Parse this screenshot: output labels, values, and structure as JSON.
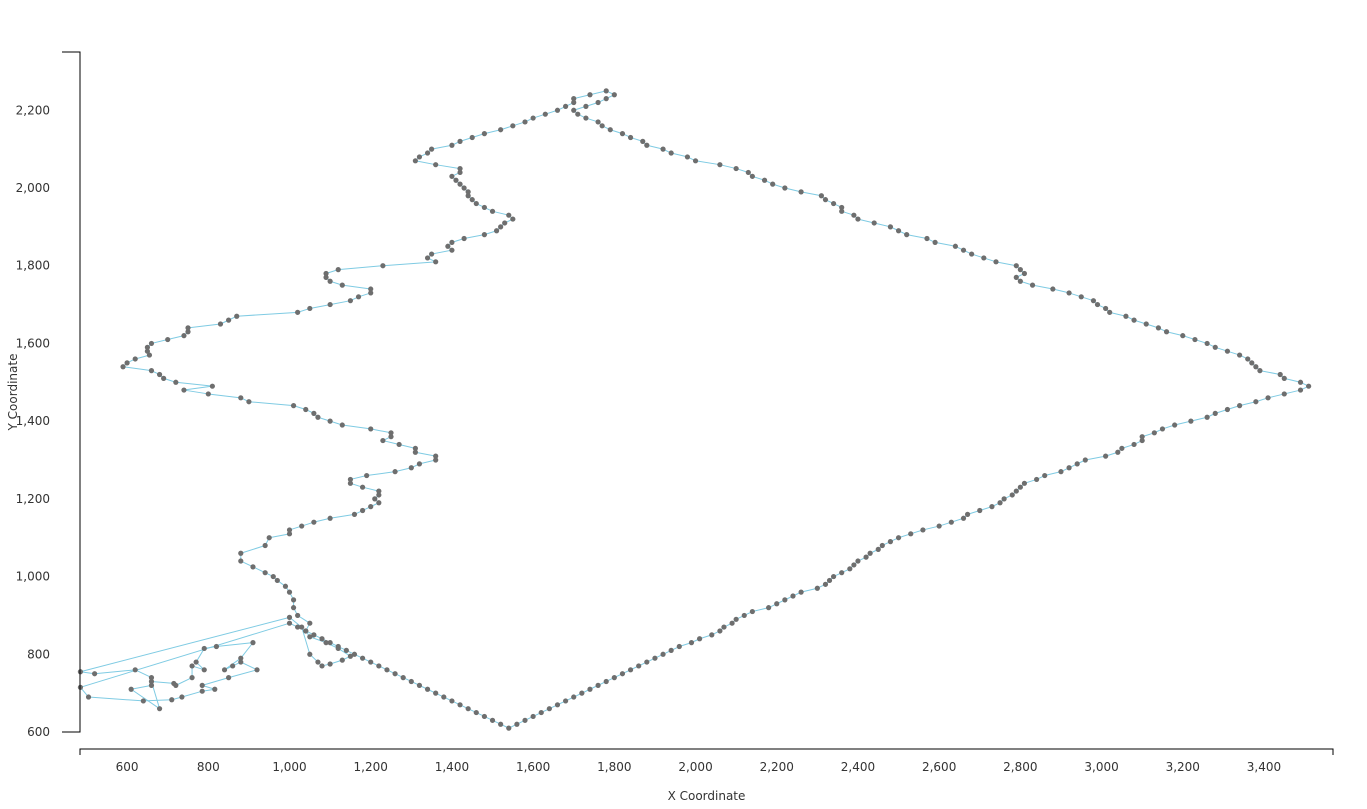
{
  "chart_data": {
    "type": "line",
    "title": "",
    "xlabel": "X Coordinate",
    "ylabel": "Y Coordinate",
    "xlim": [
      484,
      3570
    ],
    "ylim": [
      600,
      2350
    ],
    "xticks": [
      600,
      800,
      1000,
      1200,
      1400,
      1600,
      1800,
      2000,
      2200,
      2400,
      2600,
      2800,
      3000,
      3200,
      3400
    ],
    "xtick_labels": [
      "600",
      "800",
      "1,000",
      "1,200",
      "1,400",
      "1,600",
      "1,800",
      "2,000",
      "2,200",
      "2,400",
      "2,600",
      "2,800",
      "3,000",
      "3,200",
      "3,400"
    ],
    "yticks": [
      600,
      800,
      1000,
      1200,
      1400,
      1600,
      1800,
      2000,
      2200
    ],
    "ytick_labels": [
      "600",
      "800",
      "1,000",
      "1,200",
      "1,400",
      "1,600",
      "1,800",
      "2,000",
      "2,200"
    ],
    "grid": false,
    "colors": {
      "line": "#7fcbe3",
      "marker": "#6e6e6e",
      "axis": "#000000",
      "text": "#333333"
    },
    "series": [
      {
        "closed": true,
        "x": [
          485,
          505,
          640,
          710,
          735,
          785,
          816,
          785,
          850,
          920,
          880,
          860,
          840,
          880,
          910,
          820,
          790,
          770,
          790,
          760,
          760,
          720,
          715,
          660,
          680,
          610,
          660,
          660,
          620,
          520,
          485,
          1000,
          1030,
          1050,
          1070,
          1080,
          1100,
          1130,
          1150,
          1120,
          1090,
          1050,
          1040,
          1050,
          1020,
          1010,
          1010,
          1000,
          990,
          970,
          960,
          940,
          910,
          880,
          880,
          940,
          950,
          1000,
          1000,
          1030,
          1060,
          1100,
          1160,
          1180,
          1200,
          1220,
          1210,
          1220,
          1220,
          1180,
          1150,
          1150,
          1190,
          1260,
          1300,
          1320,
          1360,
          1360,
          1310,
          1310,
          1270,
          1230,
          1250,
          1250,
          1200,
          1130,
          1100,
          1070,
          1060,
          1040,
          1010,
          900,
          880,
          800,
          740,
          810,
          720,
          690,
          680,
          660,
          590,
          600,
          620,
          655,
          650,
          650,
          660,
          700,
          740,
          750,
          750,
          830,
          850,
          870,
          1020,
          1050,
          1100,
          1150,
          1170,
          1200,
          1200,
          1130,
          1100,
          1090,
          1090,
          1120,
          1230,
          1360,
          1340,
          1350,
          1400,
          1390,
          1400,
          1430,
          1480,
          1510,
          1520,
          1530,
          1550,
          1540,
          1500,
          1480,
          1460,
          1450,
          1440,
          1440,
          1430,
          1420,
          1410,
          1400,
          1420,
          1420,
          1360,
          1310,
          1320,
          1340,
          1350,
          1400,
          1420,
          1450,
          1480,
          1520,
          1550,
          1580,
          1600,
          1630,
          1660,
          1680,
          1700,
          1700,
          1740,
          1780,
          1800,
          1780,
          1760,
          1730,
          1700,
          1710,
          1730,
          1760,
          1770,
          1790,
          1820,
          1840,
          1870,
          1880,
          1920,
          1940,
          1980,
          2000,
          2060,
          2100,
          2130,
          2140,
          2170,
          2190,
          2220,
          2260,
          2310,
          2320,
          2340,
          2360,
          2360,
          2390,
          2400,
          2440,
          2480,
          2500,
          2520,
          2570,
          2590,
          2640,
          2660,
          2680,
          2710,
          2740,
          2790,
          2800,
          2810,
          2790,
          2800,
          2830,
          2880,
          2920,
          2950,
          2980,
          2990,
          3010,
          3020,
          3060,
          3080,
          3110,
          3140,
          3160,
          3200,
          3230,
          3260,
          3280,
          3310,
          3340,
          3360,
          3370,
          3380,
          3390,
          3440,
          3450,
          3490,
          3510,
          3490,
          3450,
          3410,
          3380,
          3340,
          3310,
          3280,
          3260,
          3220,
          3180,
          3150,
          3130,
          3100,
          3100,
          3080,
          3050,
          3040,
          3010,
          2960,
          2940,
          2920,
          2900,
          2860,
          2840,
          2810,
          2800,
          2790,
          2780,
          2760,
          2750,
          2730,
          2700,
          2670,
          2660,
          2630,
          2600,
          2560,
          2530,
          2500,
          2480,
          2460,
          2450,
          2430,
          2420,
          2400,
          2390,
          2380,
          2360,
          2340,
          2330,
          2320,
          2300,
          2260,
          2240,
          2220,
          2200,
          2180,
          2140,
          2120,
          2100,
          2090,
          2070,
          2060,
          2040,
          2010,
          1990,
          1960,
          1940,
          1920,
          1900,
          1880,
          1860,
          1840,
          1820,
          1800,
          1780,
          1760,
          1740,
          1720,
          1700,
          1680,
          1660,
          1640,
          1620,
          1600,
          1580,
          1560,
          1540,
          1520,
          1500,
          1480,
          1460,
          1440,
          1420,
          1400,
          1380,
          1360,
          1340,
          1320,
          1300,
          1280,
          1260,
          1240,
          1220,
          1200,
          1180,
          1160,
          1140,
          1120,
          1100,
          1080,
          1060,
          1040,
          1020,
          1000
        ],
        "y": [
          715,
          690,
          680,
          683,
          690,
          705,
          710,
          720,
          740,
          760,
          780,
          770,
          760,
          790,
          830,
          820,
          815,
          780,
          760,
          770,
          740,
          720,
          725,
          730,
          660,
          710,
          720,
          740,
          760,
          750,
          755,
          895,
          870,
          800,
          780,
          770,
          775,
          785,
          795,
          815,
          830,
          845,
          860,
          880,
          900,
          920,
          940,
          960,
          975,
          990,
          1000,
          1010,
          1025,
          1040,
          1060,
          1080,
          1100,
          1110,
          1120,
          1130,
          1140,
          1150,
          1160,
          1170,
          1180,
          1190,
          1200,
          1210,
          1220,
          1230,
          1240,
          1250,
          1260,
          1270,
          1280,
          1290,
          1300,
          1310,
          1320,
          1330,
          1340,
          1350,
          1360,
          1370,
          1380,
          1390,
          1400,
          1410,
          1420,
          1430,
          1440,
          1450,
          1460,
          1470,
          1480,
          1490,
          1500,
          1510,
          1520,
          1530,
          1540,
          1550,
          1560,
          1570,
          1580,
          1590,
          1600,
          1610,
          1620,
          1630,
          1640,
          1650,
          1660,
          1670,
          1680,
          1690,
          1700,
          1710,
          1720,
          1730,
          1740,
          1750,
          1760,
          1770,
          1780,
          1790,
          1800,
          1810,
          1820,
          1830,
          1840,
          1850,
          1860,
          1870,
          1880,
          1890,
          1900,
          1910,
          1920,
          1930,
          1940,
          1950,
          1960,
          1970,
          1980,
          1990,
          2000,
          2010,
          2020,
          2030,
          2040,
          2050,
          2060,
          2070,
          2080,
          2090,
          2100,
          2110,
          2120,
          2130,
          2140,
          2150,
          2160,
          2170,
          2180,
          2190,
          2200,
          2210,
          2220,
          2230,
          2240,
          2250,
          2240,
          2230,
          2220,
          2210,
          2200,
          2190,
          2180,
          2170,
          2160,
          2150,
          2140,
          2130,
          2120,
          2110,
          2100,
          2090,
          2080,
          2070,
          2060,
          2050,
          2040,
          2030,
          2020,
          2010,
          2000,
          1990,
          1980,
          1970,
          1960,
          1950,
          1940,
          1930,
          1920,
          1910,
          1900,
          1890,
          1880,
          1870,
          1860,
          1850,
          1840,
          1830,
          1820,
          1810,
          1800,
          1790,
          1780,
          1770,
          1760,
          1750,
          1740,
          1730,
          1720,
          1710,
          1700,
          1690,
          1680,
          1670,
          1660,
          1650,
          1640,
          1630,
          1620,
          1610,
          1600,
          1590,
          1580,
          1570,
          1560,
          1550,
          1540,
          1530,
          1520,
          1510,
          1500,
          1490,
          1480,
          1470,
          1460,
          1450,
          1440,
          1430,
          1420,
          1410,
          1400,
          1390,
          1380,
          1370,
          1360,
          1350,
          1340,
          1330,
          1320,
          1310,
          1300,
          1290,
          1280,
          1270,
          1260,
          1250,
          1240,
          1230,
          1220,
          1210,
          1200,
          1190,
          1180,
          1170,
          1160,
          1150,
          1140,
          1130,
          1120,
          1110,
          1100,
          1090,
          1080,
          1070,
          1060,
          1050,
          1040,
          1030,
          1020,
          1010,
          1000,
          990,
          980,
          970,
          960,
          950,
          940,
          930,
          920,
          910,
          900,
          890,
          880,
          870,
          860,
          850,
          840,
          830,
          820,
          810,
          800,
          790,
          780,
          770,
          760,
          750,
          740,
          730,
          720,
          710,
          700,
          690,
          680,
          670,
          660,
          650,
          640,
          630,
          620,
          610,
          620,
          630,
          640,
          650,
          660,
          670,
          680,
          690,
          700,
          710,
          720,
          730,
          740,
          750,
          760,
          770,
          780,
          790,
          800,
          810,
          820,
          830,
          840,
          850,
          860,
          870,
          880
        ]
      }
    ]
  }
}
